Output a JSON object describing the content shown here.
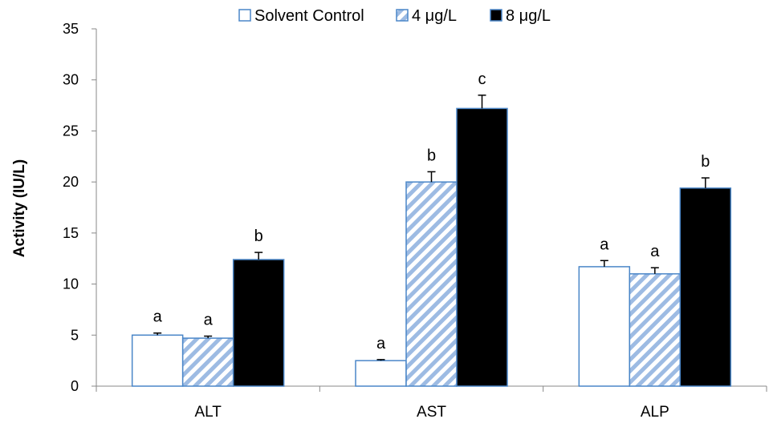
{
  "chart_data": {
    "type": "bar",
    "title": "",
    "xlabel": "",
    "ylabel": "Activity (IU/L)",
    "ylim": [
      0,
      35
    ],
    "yticks": [
      0,
      5,
      10,
      15,
      20,
      25,
      30,
      35
    ],
    "grid": false,
    "legend_position": "top",
    "categories": [
      "ALT",
      "AST",
      "ALP"
    ],
    "series": [
      {
        "name": "Solvent Control",
        "pattern": "empty",
        "fill": "#ffffff",
        "edge": "#4a86c8",
        "values": [
          5.0,
          2.5,
          11.7
        ],
        "errors": [
          0.2,
          0.1,
          0.6
        ],
        "labels": [
          "a",
          "a",
          "a"
        ]
      },
      {
        "name": "4 μg/L",
        "pattern": "hatched",
        "fill": "#a9c4e6",
        "edge": "#4a86c8",
        "values": [
          4.7,
          20.0,
          11.0
        ],
        "errors": [
          0.2,
          1.0,
          0.6
        ],
        "labels": [
          "a",
          "b",
          "a"
        ]
      },
      {
        "name": "8 μg/L",
        "pattern": "solid",
        "fill": "#000000",
        "edge": "#4a86c8",
        "values": [
          12.4,
          27.2,
          19.4
        ],
        "errors": [
          0.7,
          1.3,
          1.0
        ],
        "labels": [
          "b",
          "c",
          "b"
        ]
      }
    ]
  }
}
